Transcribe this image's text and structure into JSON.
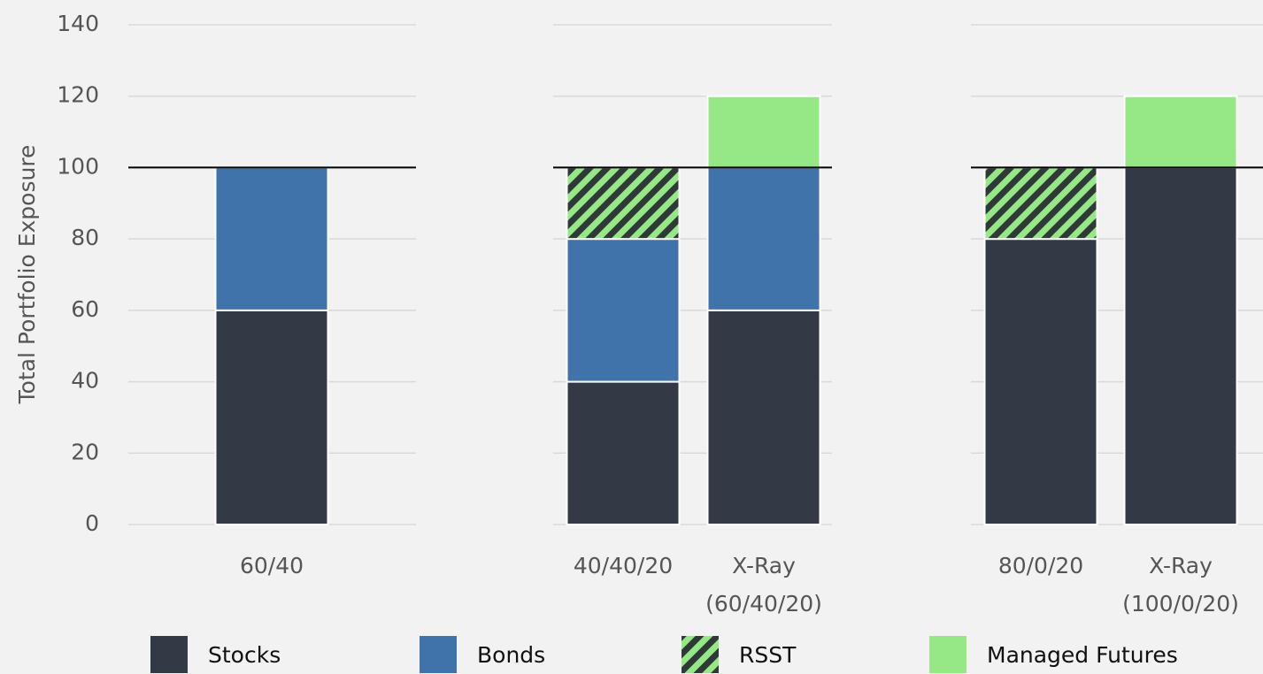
{
  "chart_data": [
    {
      "type": "stacked_bar",
      "ylabel": "Total Portfolio Exposure",
      "categories": [
        "60/40"
      ],
      "ylim": [
        0,
        140
      ],
      "yticks": [
        0,
        20,
        40,
        60,
        80,
        100,
        120,
        140
      ],
      "grid": true,
      "reference_line": 100,
      "series": [
        {
          "name": "Stocks",
          "color": "#333a45",
          "values": [
            60
          ]
        },
        {
          "name": "Bonds",
          "color": "#3f73aa",
          "values": [
            40
          ]
        },
        {
          "name": "RSST",
          "color": "#95e885",
          "pattern": "hatch",
          "values": [
            0
          ]
        },
        {
          "name": "Managed Futures",
          "color": "#95e885",
          "values": [
            0
          ]
        }
      ]
    },
    {
      "type": "stacked_bar",
      "categories": [
        "40/40/20",
        "X-Ray\n(60/40/20)"
      ],
      "ylim": [
        0,
        140
      ],
      "yticks": [
        0,
        20,
        40,
        60,
        80,
        100,
        120,
        140
      ],
      "grid": true,
      "reference_line": 100,
      "series": [
        {
          "values": [
            40,
            60
          ]
        },
        {
          "values": [
            40,
            40
          ]
        },
        {
          "values": [
            20,
            0
          ]
        },
        {
          "values": [
            0,
            20
          ]
        }
      ]
    },
    {
      "type": "stacked_bar",
      "categories": [
        "80/0/20",
        "X-Ray\n(100/0/20)"
      ],
      "ylim": [
        0,
        140
      ],
      "yticks": [
        0,
        20,
        40,
        60,
        80,
        100,
        120,
        140
      ],
      "grid": true,
      "reference_line": 100,
      "series": [
        {
          "values": [
            80,
            100
          ]
        },
        {
          "values": [
            0,
            0
          ]
        },
        {
          "values": [
            20,
            0
          ]
        },
        {
          "values": [
            0,
            20
          ]
        }
      ]
    }
  ]
}
